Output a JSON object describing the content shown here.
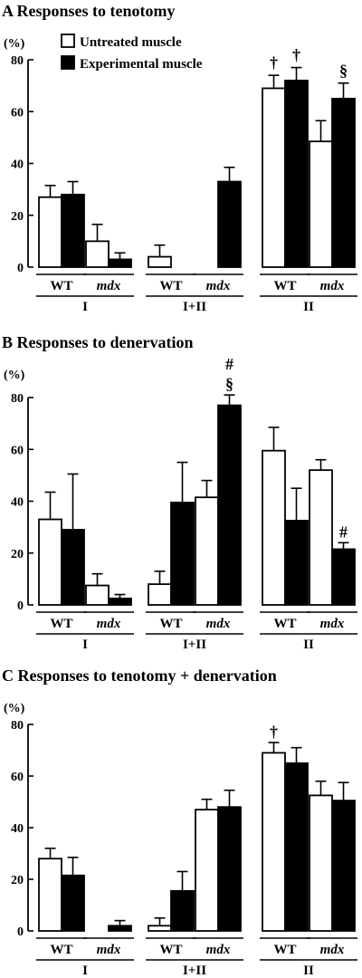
{
  "legend": [
    {
      "label": "Untreated muscle",
      "color": "#ffffff"
    },
    {
      "label": "Experimental muscle",
      "color": "#000000"
    }
  ],
  "chart_data": [
    {
      "type": "bar",
      "title": "A Responses to tenotomy",
      "ylabel": "(%)",
      "ylim": [
        0,
        80
      ],
      "yticks": [
        0,
        20,
        40,
        60,
        80
      ],
      "series": [
        {
          "name": "Untreated muscle",
          "values": [
            27,
            10,
            4,
            null,
            69,
            48.5
          ],
          "errors": [
            4.5,
            6.5,
            4.5,
            null,
            5,
            8
          ]
        },
        {
          "name": "Experimental muscle",
          "values": [
            28,
            3,
            null,
            33,
            72,
            65
          ],
          "errors": [
            5,
            2.5,
            null,
            5.5,
            5,
            6
          ]
        }
      ],
      "categories": [
        "WT",
        "mdx",
        "WT",
        "mdx",
        "WT",
        "mdx"
      ],
      "fiber_types": [
        "I",
        "I+II",
        "II"
      ],
      "annotations": [
        "†",
        "†",
        "§"
      ]
    },
    {
      "type": "bar",
      "title": "B Responses to denervation",
      "ylabel": "(%)",
      "ylim": [
        0,
        80
      ],
      "yticks": [
        0,
        20,
        40,
        60,
        80
      ],
      "series": [
        {
          "name": "Untreated muscle",
          "values": [
            33,
            7.5,
            8,
            41.5,
            59.5,
            52
          ],
          "errors": [
            10.5,
            4.5,
            5,
            6.5,
            9,
            4
          ]
        },
        {
          "name": "Experimental muscle",
          "values": [
            29,
            2.5,
            39.5,
            77,
            32.5,
            21.5
          ],
          "errors": [
            21.5,
            1.5,
            15.5,
            4,
            12.5,
            2.5
          ]
        }
      ],
      "categories": [
        "WT",
        "mdx",
        "WT",
        "mdx",
        "WT",
        "mdx"
      ],
      "fiber_types": [
        "I",
        "I+II",
        "II"
      ],
      "annotations": [
        "#",
        "§",
        "#"
      ]
    },
    {
      "type": "bar",
      "title": "C Responses to tenotomy + denervation",
      "ylabel": "(%)",
      "ylim": [
        0,
        80
      ],
      "yticks": [
        0,
        20,
        40,
        60,
        80
      ],
      "series": [
        {
          "name": "Untreated muscle",
          "values": [
            28,
            null,
            2,
            47,
            69,
            52.5
          ],
          "errors": [
            4,
            null,
            3,
            4,
            4,
            5.5
          ]
        },
        {
          "name": "Experimental muscle",
          "values": [
            21.5,
            2,
            15.5,
            48,
            65,
            50.5
          ],
          "errors": [
            7,
            2,
            7.5,
            6.5,
            6,
            7
          ]
        }
      ],
      "categories": [
        "WT",
        "mdx",
        "WT",
        "mdx",
        "WT",
        "mdx"
      ],
      "fiber_types": [
        "I",
        "I+II",
        "II"
      ],
      "annotations": [
        "†"
      ]
    }
  ]
}
